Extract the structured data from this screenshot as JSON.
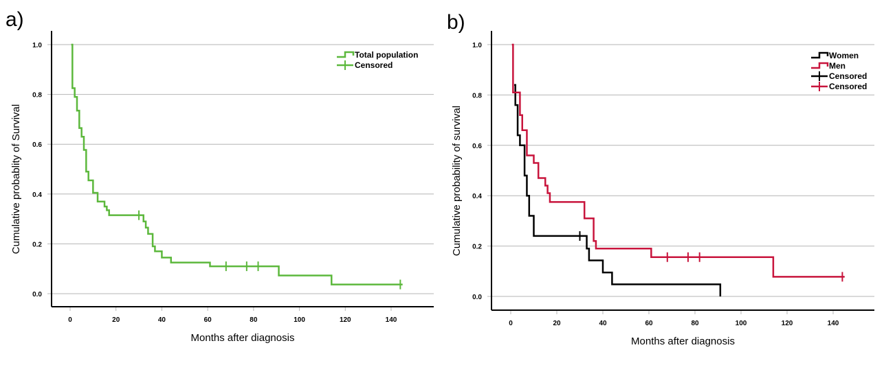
{
  "chart_data": [
    {
      "type": "line",
      "subtype": "kaplan-meier-step",
      "panel_label": "a)",
      "title": "",
      "xlabel": "Months after diagnosis",
      "ylabel": "Cumulative probablity of Survival",
      "xlim": [
        -8,
        158
      ],
      "ylim": [
        -0.05,
        1.05
      ],
      "xticks": [
        0,
        20,
        40,
        60,
        80,
        100,
        120,
        140
      ],
      "yticks": [
        "0.0",
        "0.2",
        "0.4",
        "0.6",
        "0.8",
        "1.0"
      ],
      "ytick_values": [
        0.0,
        0.2,
        0.4,
        0.6,
        0.8,
        1.0
      ],
      "grid": "horizontal",
      "legend_position": "top-right",
      "legend": [
        {
          "label": "Total population",
          "kind": "step",
          "color": "#5cb83c"
        },
        {
          "label": "Censored",
          "kind": "censor",
          "color": "#5cb83c"
        }
      ],
      "series": [
        {
          "name": "Total population",
          "color": "#5cb83c",
          "steps": [
            [
              0.5,
              1.0
            ],
            [
              1,
              0.825
            ],
            [
              2,
              0.79
            ],
            [
              3,
              0.735
            ],
            [
              4,
              0.665
            ],
            [
              5,
              0.63
            ],
            [
              6,
              0.577
            ],
            [
              7,
              0.49
            ],
            [
              8,
              0.455
            ],
            [
              10,
              0.405
            ],
            [
              12,
              0.37
            ],
            [
              15,
              0.35
            ],
            [
              16,
              0.335
            ],
            [
              17,
              0.315
            ],
            [
              32,
              0.29
            ],
            [
              33,
              0.265
            ],
            [
              34,
              0.24
            ],
            [
              36,
              0.19
            ],
            [
              37,
              0.17
            ],
            [
              40,
              0.145
            ],
            [
              44,
              0.125
            ],
            [
              61,
              0.11
            ],
            [
              91,
              0.073
            ],
            [
              114,
              0.037
            ]
          ],
          "end_x": 145,
          "censored": [
            30,
            68,
            77,
            82,
            144
          ]
        }
      ]
    },
    {
      "type": "line",
      "subtype": "kaplan-meier-step",
      "panel_label": "b)",
      "title": "",
      "xlabel": "Months after diagnosis",
      "ylabel": "Cumulative probability of survival",
      "xlim": [
        -8,
        158
      ],
      "ylim": [
        -0.05,
        1.05
      ],
      "xticks": [
        0,
        20,
        40,
        60,
        80,
        100,
        120,
        140
      ],
      "yticks": [
        "0.0",
        "0.2",
        "0.4",
        "0.6",
        "0.8",
        "1.0"
      ],
      "ytick_values": [
        0.0,
        0.2,
        0.4,
        0.6,
        0.8,
        1.0
      ],
      "grid": "horizontal",
      "legend_position": "top-right",
      "legend": [
        {
          "label": "Women",
          "kind": "step",
          "color": "#000000"
        },
        {
          "label": "Men",
          "kind": "step",
          "color": "#c8143c"
        },
        {
          "label": "Censored",
          "kind": "censor",
          "color": "#000000"
        },
        {
          "label": "Censored",
          "kind": "censor",
          "color": "#c8143c"
        }
      ],
      "series": [
        {
          "name": "Women",
          "color": "#000000",
          "steps": [
            [
              1.5,
              0.84
            ],
            [
              2,
              0.76
            ],
            [
              3,
              0.64
            ],
            [
              4,
              0.6
            ],
            [
              6,
              0.48
            ],
            [
              7,
              0.4
            ],
            [
              8,
              0.32
            ],
            [
              10,
              0.24
            ],
            [
              33,
              0.19
            ],
            [
              34,
              0.143
            ],
            [
              40,
              0.095
            ],
            [
              44,
              0.048
            ],
            [
              91,
              0.0
            ]
          ],
          "end_x": 91,
          "censored": [
            30
          ]
        },
        {
          "name": "Men",
          "color": "#c8143c",
          "steps": [
            [
              0.5,
              1.0
            ],
            [
              1,
              0.81
            ],
            [
              4,
              0.72
            ],
            [
              5,
              0.66
            ],
            [
              7,
              0.56
            ],
            [
              10,
              0.53
            ],
            [
              12,
              0.47
            ],
            [
              15,
              0.44
            ],
            [
              16,
              0.41
            ],
            [
              17,
              0.375
            ],
            [
              32,
              0.31
            ],
            [
              36,
              0.22
            ],
            [
              37,
              0.19
            ],
            [
              61,
              0.156
            ],
            [
              114,
              0.078
            ]
          ],
          "end_x": 145,
          "censored": [
            68,
            77,
            82,
            144
          ]
        }
      ]
    }
  ]
}
